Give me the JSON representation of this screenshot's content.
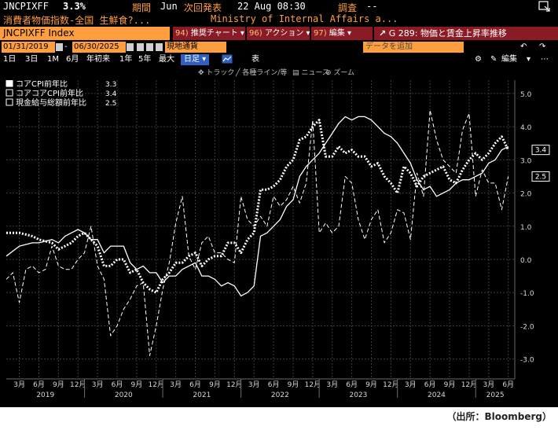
{
  "header": {
    "ticker": "JNCPIXFF",
    "last_value": "3.3%",
    "period_label": "期間",
    "period_value": "Jun",
    "next_release_label": "次回発表",
    "next_release_value": "22 Aug 08:30",
    "survey_label": "調査",
    "survey_value": "--",
    "description": "消費者物価指数-全国 生鮮食?...",
    "source": "Ministry of Internal Affairs a..."
  },
  "toolbar": {
    "index_name": "JNCPIXFF Index",
    "menu": [
      {
        "num": "94)",
        "label": "推奨チャート"
      },
      {
        "num": "96)",
        "label": "アクション"
      },
      {
        "num": "97)",
        "label": "編集"
      }
    ],
    "news_headline": "G 289: 物価と賃金上昇率推移"
  },
  "range": {
    "start_date": "01/31/2019",
    "end_date": "06/30/2025",
    "currency": "現地通貨",
    "add_data_placeholder": "データを追加"
  },
  "periods": {
    "buttons": [
      "1日",
      "3日",
      "1M",
      "6月",
      "年初来",
      "1年",
      "5年",
      "最大"
    ],
    "frequency": "日足",
    "table_label": "表",
    "edit_label": "編集"
  },
  "chart_tools": [
    "トラック",
    "各種ライン/等",
    "ニュース",
    "ズーム"
  ],
  "chart_data": {
    "type": "line",
    "x_labels": [
      "3月",
      "6月",
      "9月",
      "12月",
      "3月",
      "6月",
      "9月",
      "12月",
      "3月",
      "6月",
      "9月",
      "12月",
      "3月",
      "6月",
      "9月",
      "12月",
      "3月",
      "6月",
      "9月",
      "12月",
      "3月",
      "6月",
      "9月",
      "12月",
      "3月",
      "6月"
    ],
    "years": [
      "2019",
      "2020",
      "2021",
      "2022",
      "2023",
      "2024",
      "2025"
    ],
    "y_ticks": [
      "5.0",
      "4.0",
      "3.0",
      "2.0",
      "1.0",
      "0.0",
      "-1.0",
      "-2.0",
      "-3.0"
    ],
    "ylim": [
      -3.6,
      5.4
    ],
    "xlim": [
      "2019-01",
      "2025-07"
    ],
    "series": [
      {
        "name": "コアCPI前年比",
        "last": "3.3",
        "style": "dotted-thick",
        "values": [
          [
            "2019-01",
            0.8
          ],
          [
            "2019-03",
            0.8
          ],
          [
            "2019-05",
            0.7
          ],
          [
            "2019-06",
            0.6
          ],
          [
            "2019-08",
            0.5
          ],
          [
            "2019-09",
            0.3
          ],
          [
            "2019-10",
            0.4
          ],
          [
            "2019-11",
            0.5
          ],
          [
            "2019-12",
            0.7
          ],
          [
            "2020-01",
            0.8
          ],
          [
            "2020-02",
            0.6
          ],
          [
            "2020-03",
            0.4
          ],
          [
            "2020-04",
            -0.2
          ],
          [
            "2020-05",
            -0.2
          ],
          [
            "2020-06",
            0.0
          ],
          [
            "2020-07",
            0.0
          ],
          [
            "2020-08",
            -0.4
          ],
          [
            "2020-09",
            -0.3
          ],
          [
            "2020-10",
            -0.7
          ],
          [
            "2020-11",
            -0.9
          ],
          [
            "2020-12",
            -1.0
          ],
          [
            "2021-01",
            -0.6
          ],
          [
            "2021-02",
            -0.4
          ],
          [
            "2021-03",
            -0.1
          ],
          [
            "2021-04",
            -0.1
          ],
          [
            "2021-05",
            0.1
          ],
          [
            "2021-06",
            0.2
          ],
          [
            "2021-07",
            -0.2
          ],
          [
            "2021-08",
            0.0
          ],
          [
            "2021-09",
            0.1
          ],
          [
            "2021-10",
            0.1
          ],
          [
            "2021-11",
            0.5
          ],
          [
            "2021-12",
            0.5
          ],
          [
            "2022-01",
            0.2
          ],
          [
            "2022-02",
            0.6
          ],
          [
            "2022-03",
            0.8
          ],
          [
            "2022-04",
            2.1
          ],
          [
            "2022-05",
            2.1
          ],
          [
            "2022-06",
            2.2
          ],
          [
            "2022-07",
            2.4
          ],
          [
            "2022-08",
            2.8
          ],
          [
            "2022-09",
            3.0
          ],
          [
            "2022-10",
            3.6
          ],
          [
            "2022-11",
            3.7
          ],
          [
            "2022-12",
            4.0
          ],
          [
            "2023-01",
            4.2
          ],
          [
            "2023-02",
            3.1
          ],
          [
            "2023-03",
            3.1
          ],
          [
            "2023-04",
            3.4
          ],
          [
            "2023-05",
            3.2
          ],
          [
            "2023-06",
            3.3
          ],
          [
            "2023-07",
            3.1
          ],
          [
            "2023-08",
            3.1
          ],
          [
            "2023-09",
            2.8
          ],
          [
            "2023-10",
            2.9
          ],
          [
            "2023-11",
            2.5
          ],
          [
            "2023-12",
            2.3
          ],
          [
            "2024-01",
            2.0
          ],
          [
            "2024-02",
            2.8
          ],
          [
            "2024-03",
            2.6
          ],
          [
            "2024-04",
            2.2
          ],
          [
            "2024-05",
            2.5
          ],
          [
            "2024-06",
            2.6
          ],
          [
            "2024-07",
            2.7
          ],
          [
            "2024-08",
            2.8
          ],
          [
            "2024-09",
            2.4
          ],
          [
            "2024-10",
            2.3
          ],
          [
            "2024-11",
            2.7
          ],
          [
            "2024-12",
            3.0
          ],
          [
            "2025-01",
            3.2
          ],
          [
            "2025-02",
            3.0
          ],
          [
            "2025-03",
            3.2
          ],
          [
            "2025-04",
            3.5
          ],
          [
            "2025-05",
            3.7
          ],
          [
            "2025-06",
            3.3
          ]
        ]
      },
      {
        "name": "コアコアCPI前年比",
        "last": "3.4",
        "style": "solid",
        "values": [
          [
            "2019-01",
            0.1
          ],
          [
            "2019-03",
            0.4
          ],
          [
            "2019-05",
            0.5
          ],
          [
            "2019-06",
            0.5
          ],
          [
            "2019-08",
            0.6
          ],
          [
            "2019-09",
            0.5
          ],
          [
            "2019-10",
            0.7
          ],
          [
            "2019-11",
            0.8
          ],
          [
            "2019-12",
            0.9
          ],
          [
            "2020-01",
            0.8
          ],
          [
            "2020-02",
            0.6
          ],
          [
            "2020-03",
            0.6
          ],
          [
            "2020-04",
            0.2
          ],
          [
            "2020-05",
            0.4
          ],
          [
            "2020-06",
            0.4
          ],
          [
            "2020-07",
            0.4
          ],
          [
            "2020-08",
            -0.1
          ],
          [
            "2020-09",
            -0.3
          ],
          [
            "2020-10",
            -0.2
          ],
          [
            "2020-11",
            -0.4
          ],
          [
            "2020-12",
            -0.4
          ],
          [
            "2021-01",
            -0.7
          ],
          [
            "2021-02",
            -0.5
          ],
          [
            "2021-03",
            -0.5
          ],
          [
            "2021-04",
            -0.3
          ],
          [
            "2021-05",
            -0.2
          ],
          [
            "2021-06",
            -0.1
          ],
          [
            "2021-07",
            -0.5
          ],
          [
            "2021-08",
            -0.5
          ],
          [
            "2021-09",
            -0.6
          ],
          [
            "2021-10",
            -0.8
          ],
          [
            "2021-11",
            -0.7
          ],
          [
            "2021-12",
            -0.8
          ],
          [
            "2022-01",
            -1.1
          ],
          [
            "2022-02",
            -1.0
          ],
          [
            "2022-03",
            -0.8
          ],
          [
            "2022-04",
            0.7
          ],
          [
            "2022-05",
            0.8
          ],
          [
            "2022-06",
            1.0
          ],
          [
            "2022-07",
            1.2
          ],
          [
            "2022-08",
            1.6
          ],
          [
            "2022-09",
            1.8
          ],
          [
            "2022-10",
            2.5
          ],
          [
            "2022-11",
            2.8
          ],
          [
            "2022-12",
            3.0
          ],
          [
            "2023-01",
            3.2
          ],
          [
            "2023-02",
            3.5
          ],
          [
            "2023-03",
            3.8
          ],
          [
            "2023-04",
            4.1
          ],
          [
            "2023-05",
            4.3
          ],
          [
            "2023-06",
            4.2
          ],
          [
            "2023-07",
            4.3
          ],
          [
            "2023-08",
            4.3
          ],
          [
            "2023-09",
            4.2
          ],
          [
            "2023-10",
            4.0
          ],
          [
            "2023-11",
            3.8
          ],
          [
            "2023-12",
            3.7
          ],
          [
            "2024-01",
            3.5
          ],
          [
            "2024-02",
            3.2
          ],
          [
            "2024-03",
            2.9
          ],
          [
            "2024-04",
            2.4
          ],
          [
            "2024-05",
            2.1
          ],
          [
            "2024-06",
            2.2
          ],
          [
            "2024-07",
            1.9
          ],
          [
            "2024-08",
            2.0
          ],
          [
            "2024-09",
            2.1
          ],
          [
            "2024-10",
            2.3
          ],
          [
            "2024-11",
            2.4
          ],
          [
            "2024-12",
            2.4
          ],
          [
            "2025-01",
            2.5
          ],
          [
            "2025-02",
            2.6
          ],
          [
            "2025-03",
            2.9
          ],
          [
            "2025-04",
            3.0
          ],
          [
            "2025-05",
            3.3
          ],
          [
            "2025-06",
            3.4
          ]
        ]
      },
      {
        "name": "現金給与総額前年比",
        "last": "2.5",
        "style": "dashed",
        "values": [
          [
            "2019-01",
            -0.6
          ],
          [
            "2019-02",
            -0.4
          ],
          [
            "2019-03",
            -1.3
          ],
          [
            "2019-04",
            -0.3
          ],
          [
            "2019-05",
            -0.2
          ],
          [
            "2019-06",
            -0.4
          ],
          [
            "2019-07",
            -0.3
          ],
          [
            "2019-08",
            0.4
          ],
          [
            "2019-09",
            -0.2
          ],
          [
            "2019-10",
            -0.3
          ],
          [
            "2019-11",
            -0.3
          ],
          [
            "2019-12",
            0.0
          ],
          [
            "2020-01",
            0.2
          ],
          [
            "2020-02",
            1.0
          ],
          [
            "2020-03",
            -0.2
          ],
          [
            "2020-04",
            -0.6
          ],
          [
            "2020-05",
            -2.3
          ],
          [
            "2020-06",
            -2.0
          ],
          [
            "2020-07",
            -1.5
          ],
          [
            "2020-08",
            -1.2
          ],
          [
            "2020-09",
            -0.8
          ],
          [
            "2020-10",
            -0.7
          ],
          [
            "2020-11",
            -2.9
          ],
          [
            "2020-12",
            -2.0
          ],
          [
            "2021-01",
            -0.9
          ],
          [
            "2021-02",
            -0.1
          ],
          [
            "2021-03",
            1.1
          ],
          [
            "2021-04",
            1.9
          ],
          [
            "2021-05",
            0.1
          ],
          [
            "2021-06",
            -0.3
          ],
          [
            "2021-07",
            0.5
          ],
          [
            "2021-08",
            0.7
          ],
          [
            "2021-09",
            0.2
          ],
          [
            "2021-10",
            0.2
          ],
          [
            "2021-11",
            0.0
          ],
          [
            "2021-12",
            -0.1
          ],
          [
            "2022-01",
            1.9
          ],
          [
            "2022-02",
            1.2
          ],
          [
            "2022-03",
            1.0
          ],
          [
            "2022-04",
            1.3
          ],
          [
            "2022-05",
            1.0
          ],
          [
            "2022-06",
            1.9
          ],
          [
            "2022-07",
            1.6
          ],
          [
            "2022-08",
            1.8
          ],
          [
            "2022-09",
            2.2
          ],
          [
            "2022-10",
            1.7
          ],
          [
            "2022-11",
            2.3
          ],
          [
            "2022-12",
            4.2
          ],
          [
            "2023-01",
            0.8
          ],
          [
            "2023-02",
            1.1
          ],
          [
            "2023-03",
            0.8
          ],
          [
            "2023-04",
            1.0
          ],
          [
            "2023-05",
            2.5
          ],
          [
            "2023-06",
            2.3
          ],
          [
            "2023-07",
            1.2
          ],
          [
            "2023-08",
            0.6
          ],
          [
            "2023-09",
            1.2
          ],
          [
            "2023-10",
            1.5
          ],
          [
            "2023-11",
            0.5
          ],
          [
            "2023-12",
            0.8
          ],
          [
            "2024-01",
            1.5
          ],
          [
            "2024-02",
            1.4
          ],
          [
            "2024-03",
            0.6
          ],
          [
            "2024-04",
            2.6
          ],
          [
            "2024-05",
            1.9
          ],
          [
            "2024-06",
            4.5
          ],
          [
            "2024-07",
            3.6
          ],
          [
            "2024-08",
            3.0
          ],
          [
            "2024-09",
            2.8
          ],
          [
            "2024-10",
            2.6
          ],
          [
            "2024-11",
            3.9
          ],
          [
            "2024-12",
            4.4
          ],
          [
            "2025-01",
            1.9
          ],
          [
            "2025-02",
            2.7
          ],
          [
            "2025-03",
            2.3
          ],
          [
            "2025-04",
            2.3
          ],
          [
            "2025-05",
            1.5
          ],
          [
            "2025-06",
            2.5
          ]
        ]
      }
    ],
    "grid": true,
    "legend_position": "top-left"
  },
  "caption": "（出所：Bloomberg）",
  "colors": {
    "background": "#000000",
    "orange": "#ff9e3d",
    "menu_red": "#8a1a24",
    "series": "#ffffff",
    "grid": "#3b3b3b"
  }
}
